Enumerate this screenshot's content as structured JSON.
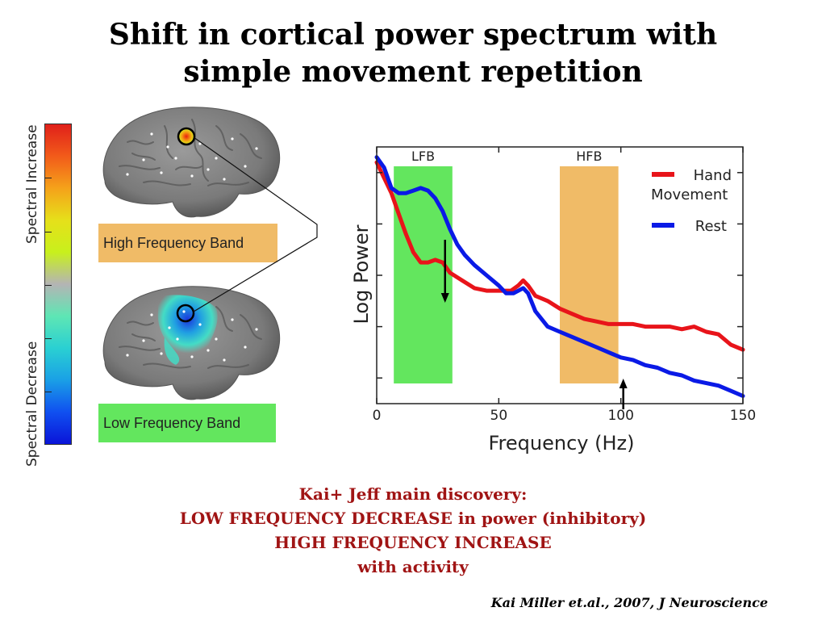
{
  "title": {
    "line1": "Shift in cortical power spectrum with",
    "line2": "simple movement repetition"
  },
  "colorbar": {
    "top_label": "Spectral Increase",
    "bottom_label": "Spectral Decrease"
  },
  "bands": {
    "high_label": "High Frequency Band",
    "low_label": "Low Frequency Band"
  },
  "colors": {
    "movement": "#e8141a",
    "rest": "#0a1ae6",
    "lfb_band": "#63e65e",
    "hfb_band": "#f0bb67",
    "discovery_text": "#a01414"
  },
  "chart_data": {
    "type": "line",
    "xlabel": "Frequency (Hz)",
    "ylabel": "Log Power",
    "xlim": [
      0,
      150
    ],
    "ylim": [
      0,
      10
    ],
    "xticks": [
      0,
      50,
      100,
      150
    ],
    "legend_position": "top-right",
    "shaded_regions": [
      {
        "label": "LFB",
        "x_start": 7,
        "x_end": 31,
        "color": "#63e65e"
      },
      {
        "label": "HFB",
        "x_start": 75,
        "x_end": 99,
        "color": "#f0bb67"
      }
    ],
    "arrows": [
      {
        "x": 28,
        "direction": "down"
      },
      {
        "x": 101,
        "direction": "up"
      }
    ],
    "series": [
      {
        "name": "Hand Movement",
        "x": [
          0,
          3,
          6,
          9,
          12,
          15,
          18,
          21,
          24,
          27,
          30,
          35,
          40,
          45,
          50,
          55,
          58,
          60,
          62,
          65,
          70,
          75,
          80,
          85,
          90,
          95,
          100,
          105,
          110,
          115,
          120,
          125,
          130,
          135,
          140,
          145,
          150
        ],
        "values": [
          9.4,
          8.8,
          8.2,
          7.4,
          6.6,
          5.9,
          5.5,
          5.5,
          5.6,
          5.5,
          5.1,
          4.8,
          4.5,
          4.4,
          4.4,
          4.4,
          4.6,
          4.8,
          4.6,
          4.2,
          4.0,
          3.7,
          3.5,
          3.3,
          3.2,
          3.1,
          3.1,
          3.1,
          3.0,
          3.0,
          3.0,
          2.9,
          3.0,
          2.8,
          2.7,
          2.3,
          2.1
        ]
      },
      {
        "name": "Rest",
        "x": [
          0,
          3,
          6,
          9,
          12,
          15,
          18,
          21,
          24,
          27,
          30,
          33,
          36,
          40,
          45,
          50,
          53,
          56,
          60,
          62,
          65,
          70,
          75,
          80,
          85,
          90,
          95,
          100,
          105,
          110,
          115,
          120,
          125,
          130,
          135,
          140,
          145,
          150
        ],
        "values": [
          9.6,
          9.2,
          8.4,
          8.2,
          8.2,
          8.3,
          8.4,
          8.3,
          8.0,
          7.5,
          6.8,
          6.2,
          5.8,
          5.4,
          5.0,
          4.6,
          4.3,
          4.3,
          4.5,
          4.3,
          3.6,
          3.0,
          2.8,
          2.6,
          2.4,
          2.2,
          2.0,
          1.8,
          1.7,
          1.5,
          1.4,
          1.2,
          1.1,
          0.9,
          0.8,
          0.7,
          0.5,
          0.3
        ]
      }
    ]
  },
  "discovery": {
    "line1": "Kai+ Jeff main discovery:",
    "line2": "LOW FREQUENCY DECREASE in power (inhibitory)",
    "line3": "HIGH FREQUENCY INCREASE",
    "line4": "with activity"
  },
  "citation": "Kai Miller et.al., 2007, J Neuroscience"
}
